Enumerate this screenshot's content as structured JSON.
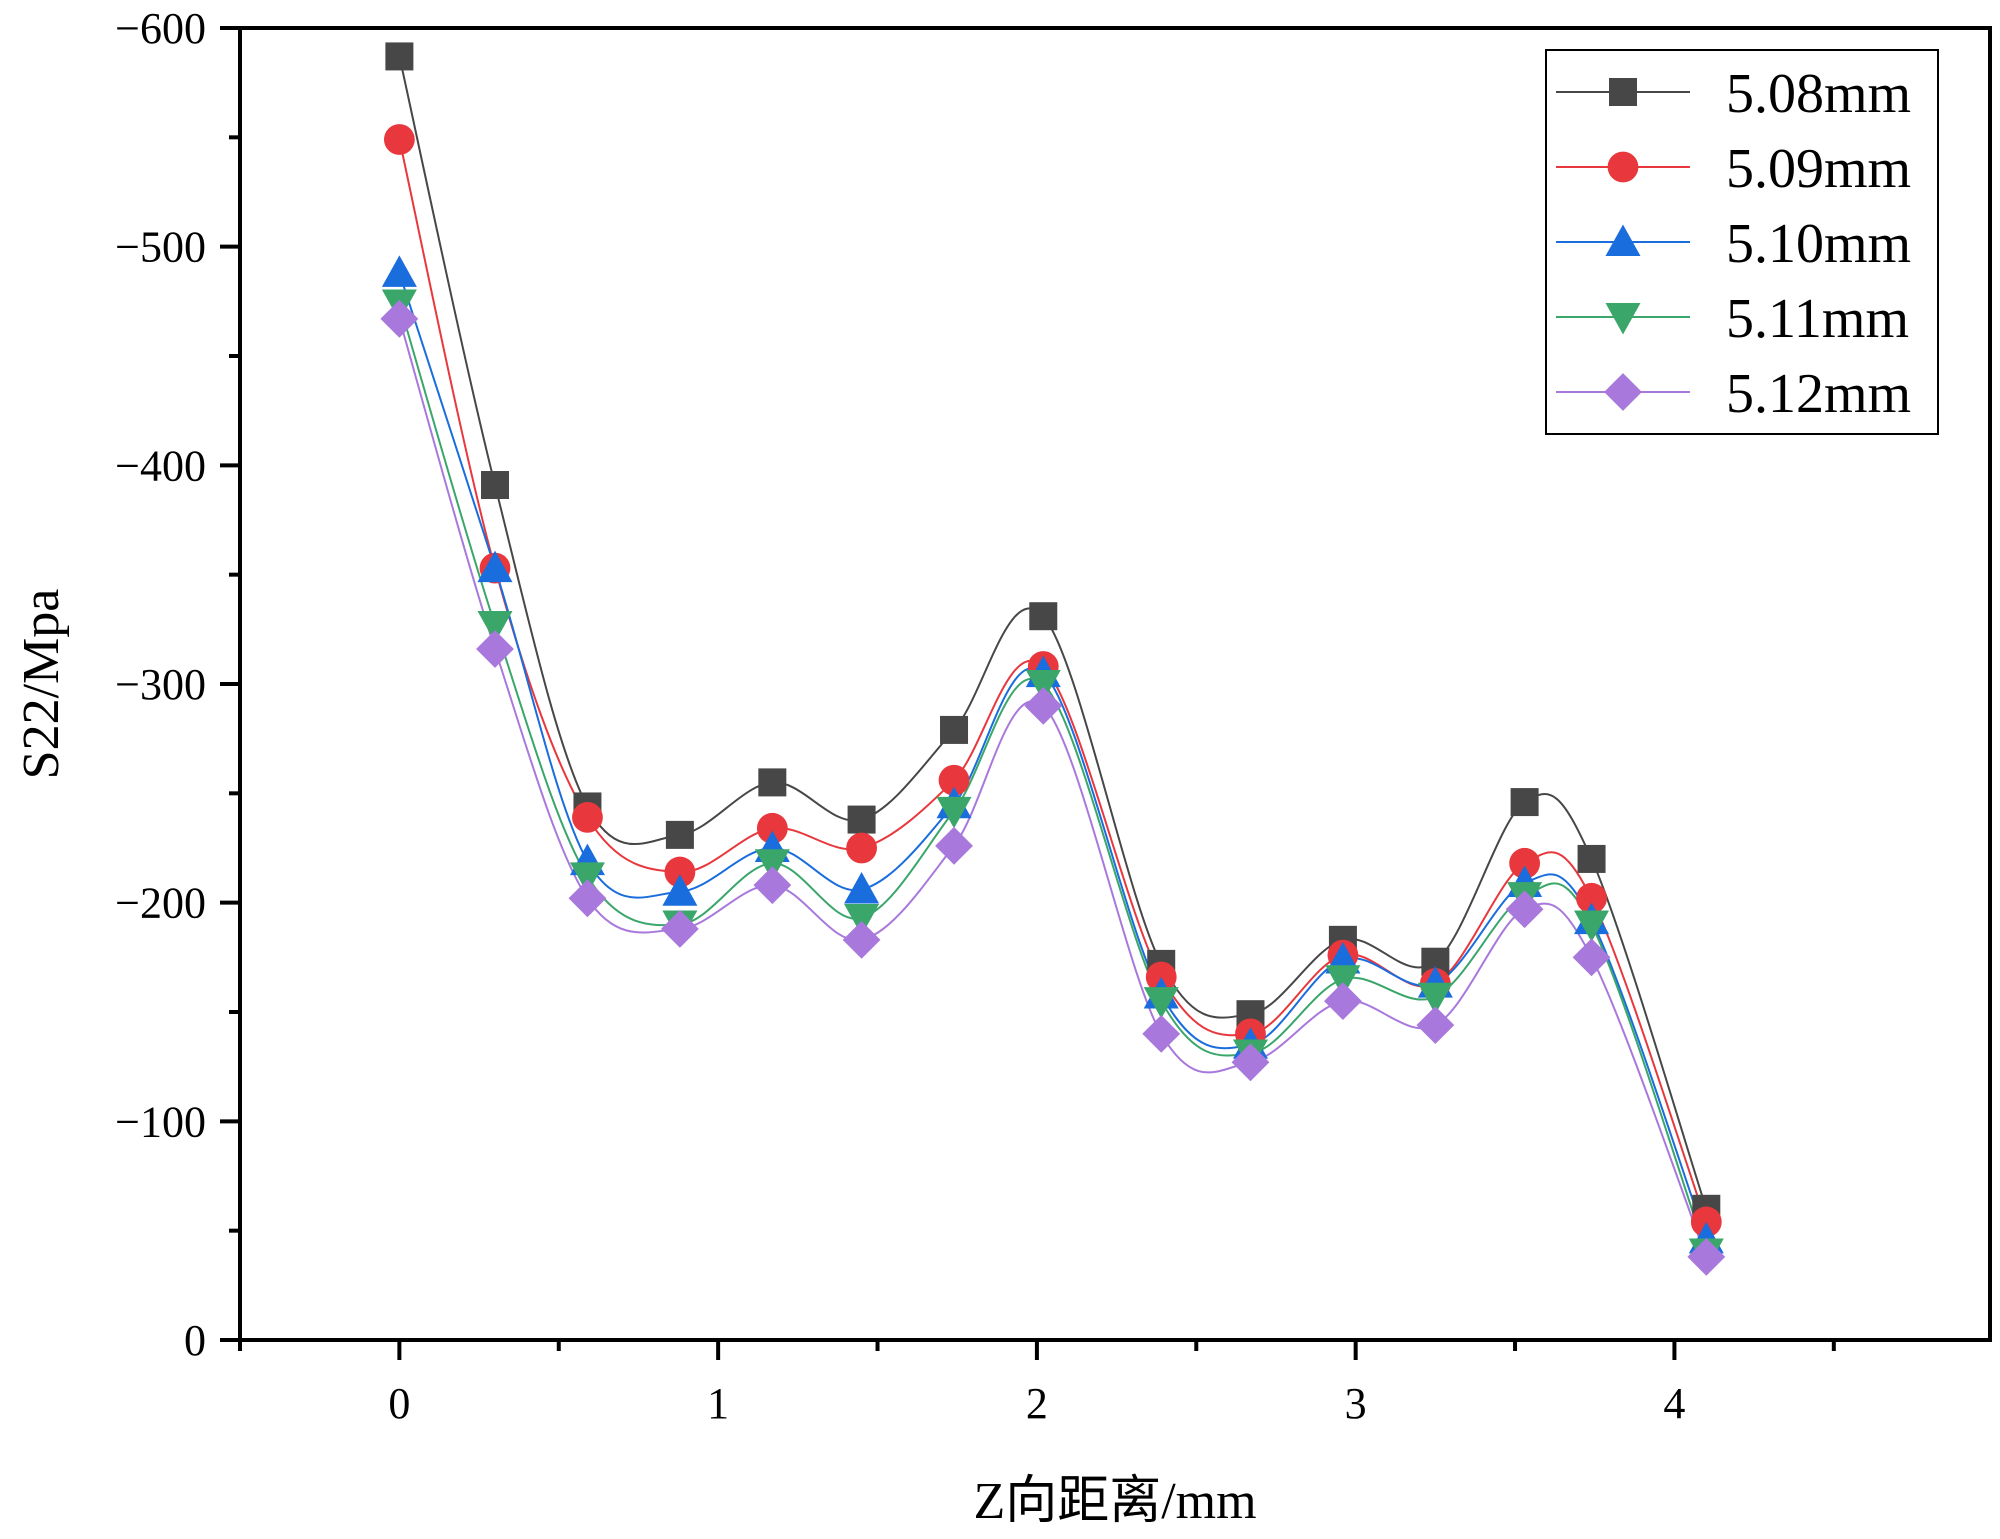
{
  "chart_data": {
    "type": "line",
    "title": "",
    "xlabel": "Z向距离/mm",
    "ylabel": "S22/Mpa",
    "xlim": [
      -0.5,
      4.99
    ],
    "ylim": [
      0,
      -600
    ],
    "x_ticks": [
      0,
      1,
      2,
      3,
      4
    ],
    "x_tick_labels": [
      "0",
      "1",
      "2",
      "3",
      "4"
    ],
    "y_ticks": [
      0,
      -100,
      -200,
      -300,
      -400,
      -500,
      -600
    ],
    "y_tick_labels": [
      "0",
      "−100",
      "−200",
      "−300",
      "−400",
      "−500",
      "−600"
    ],
    "grid": false,
    "legend_position": "top-right",
    "x": [
      0,
      0.3,
      0.59,
      0.88,
      1.17,
      1.45,
      1.74,
      2.02,
      2.39,
      2.67,
      2.96,
      3.25,
      3.53,
      3.74,
      4.1
    ],
    "series": [
      {
        "name": "5.08mm",
        "color": "#474747",
        "marker": "square",
        "values": [
          -587,
          -391,
          -244,
          -231,
          -255,
          -238,
          -279,
          -331,
          -172,
          -149,
          -183,
          -173,
          -246,
          -220,
          -60
        ]
      },
      {
        "name": "5.09mm",
        "color": "#e8383d",
        "marker": "circle",
        "values": [
          -549,
          -353,
          -239,
          -214,
          -234,
          -225,
          -256,
          -308,
          -166,
          -140,
          -176,
          -163,
          -218,
          -202,
          -54
        ]
      },
      {
        "name": "5.10mm",
        "color": "#1a6ddc",
        "marker": "triangle-up",
        "values": [
          -488,
          -353,
          -219,
          -205,
          -225,
          -206,
          -245,
          -305,
          -158,
          -135,
          -174,
          -163,
          -209,
          -192,
          -46
        ]
      },
      {
        "name": "5.11mm",
        "color": "#3aa66a",
        "marker": "triangle-down",
        "values": [
          -474,
          -327,
          -212,
          -190,
          -218,
          -193,
          -242,
          -300,
          -155,
          -131,
          -165,
          -157,
          -203,
          -190,
          -40
        ]
      },
      {
        "name": "5.12mm",
        "color": "#a878dc",
        "marker": "diamond",
        "values": [
          -467,
          -316,
          -202,
          -188,
          -208,
          -183,
          -226,
          -290,
          -140,
          -127,
          -155,
          -144,
          -197,
          -175,
          -38
        ]
      }
    ]
  }
}
